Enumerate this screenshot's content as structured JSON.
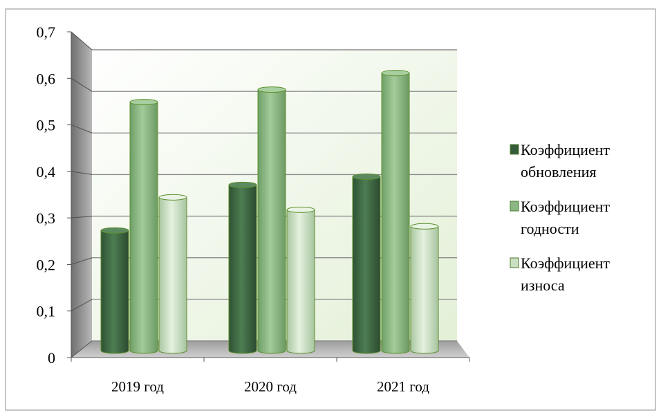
{
  "chart_data": {
    "type": "bar",
    "categories": [
      "2019 год",
      "2020 год",
      "2021 год"
    ],
    "series": [
      {
        "name": "Коэффициент обновления",
        "legend_lines": [
          "Коэффициент",
          "обновления"
        ],
        "values": [
          0.29,
          0.4,
          0.42
        ]
      },
      {
        "name": "Коэффициент годности",
        "legend_lines": [
          "Коэффициент",
          "годности"
        ],
        "values": [
          0.6,
          0.63,
          0.67
        ]
      },
      {
        "name": "Коэффициент износа",
        "legend_lines": [
          "Коэффициент",
          "износа"
        ],
        "values": [
          0.37,
          0.34,
          0.3
        ]
      }
    ],
    "y_ticks": [
      "0",
      "0,1",
      "0,2",
      "0,3",
      "0,4",
      "0,5",
      "0,6",
      "0,7"
    ],
    "ylim": [
      0,
      0.7
    ],
    "grid": true,
    "legend_position": "right",
    "style": "3d-cylinder",
    "colors": {
      "series": [
        "#3f6b44",
        "#84b27c",
        "#c3dcbb"
      ],
      "outline": "#5e8e2c",
      "back_wall": "#eef6e6",
      "side_wall": "#8a8a8a",
      "floor": "#b9b9b9",
      "gridline": "#8c8c8c"
    }
  }
}
